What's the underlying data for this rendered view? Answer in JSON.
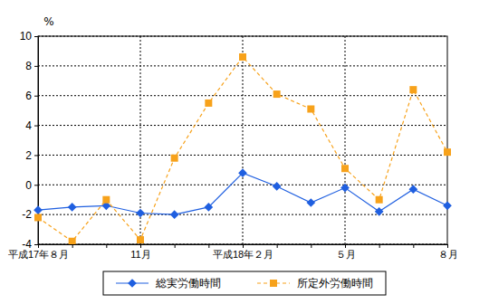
{
  "chart_data": {
    "type": "line",
    "ylabel": "%",
    "categories": [
      "平成17年８月",
      null,
      null,
      "11月",
      null,
      null,
      "平成18年２月",
      null,
      null,
      "５月",
      null,
      null,
      "８月"
    ],
    "series": [
      {
        "name": "総実労働時間",
        "color": "#1f5fe0",
        "marker": "diamond",
        "line_style": "solid",
        "values": [
          -1.7,
          -1.5,
          -1.4,
          -1.9,
          -2.0,
          -1.5,
          0.8,
          -0.1,
          -1.2,
          -0.2,
          -1.8,
          -0.3,
          -1.4
        ]
      },
      {
        "name": "所定外労働時間",
        "color": "#f7a21b",
        "marker": "square",
        "line_style": "dashed",
        "values": [
          -2.2,
          -3.8,
          -1.0,
          -3.7,
          1.8,
          5.5,
          8.6,
          6.1,
          5.1,
          1.1,
          -1.0,
          6.4,
          2.2
        ]
      }
    ],
    "ylim": [
      -4,
      10
    ],
    "yticks": [
      -4,
      -2,
      0,
      2,
      4,
      6,
      8,
      10
    ],
    "grid": true,
    "legend": "bottom"
  }
}
